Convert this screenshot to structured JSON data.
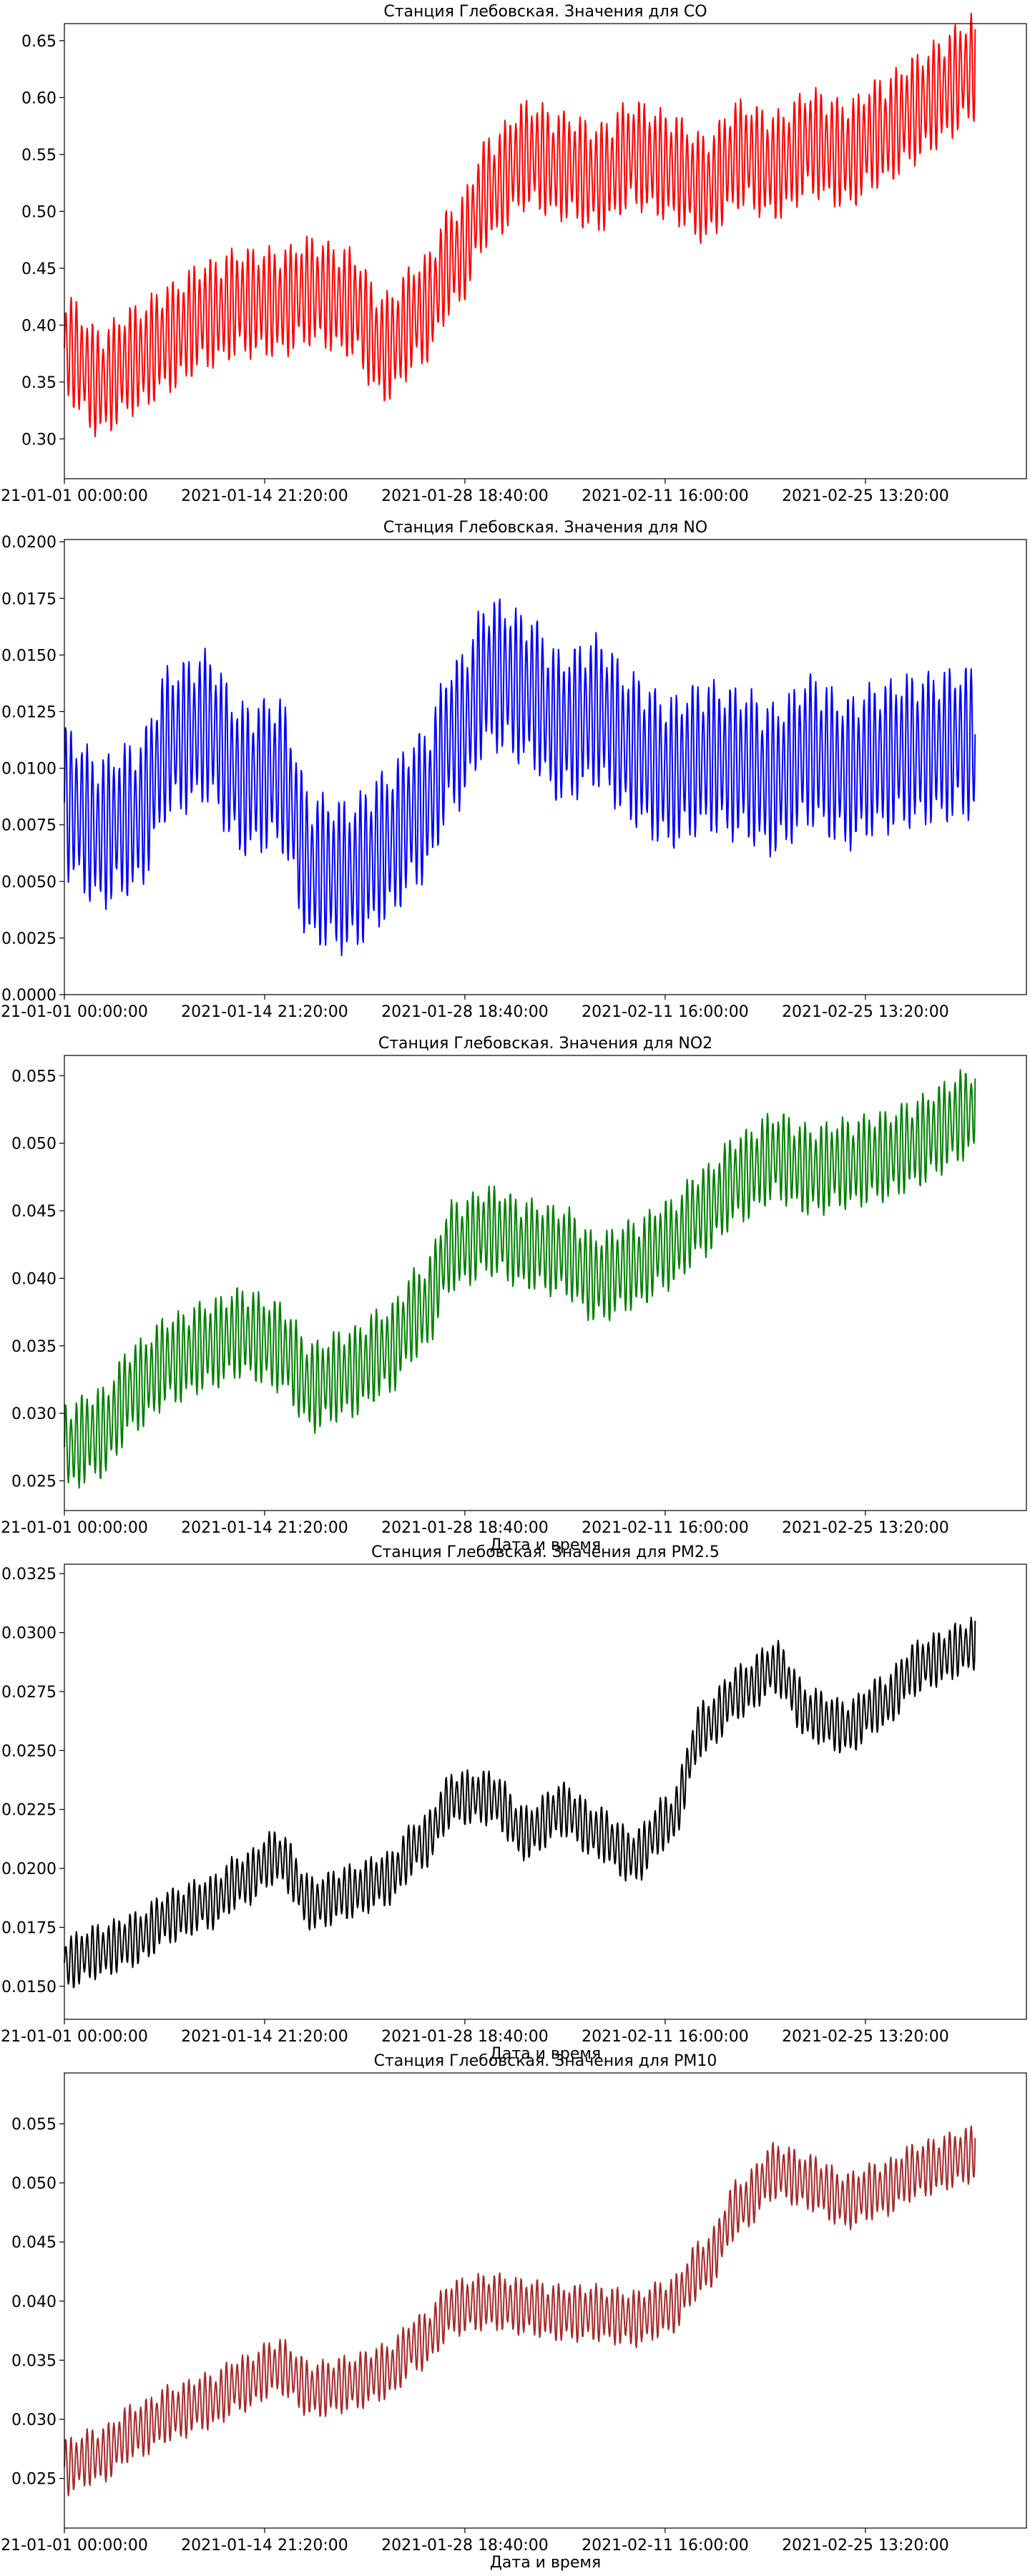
{
  "chart_data": [
    {
      "type": "line",
      "title": "Станция Глебовская. Значения для CO",
      "xlabel": "",
      "ylabel": "",
      "color": "#ff0000",
      "x_ticks": [
        "2021-01-01 00:00:00",
        "2021-01-14 21:20:00",
        "2021-01-28 18:40:00",
        "2021-02-11 16:00:00",
        "2021-02-25 13:20:00"
      ],
      "y_ticks": [
        "0.30",
        "0.35",
        "0.40",
        "0.45",
        "0.50",
        "0.55",
        "0.60",
        "0.65"
      ],
      "xlim": [
        "2021-01-01 00:00:00",
        "2021-03-08 17:20:00"
      ],
      "ylim": [
        0.265,
        0.665
      ],
      "series": [
        {
          "x": [
            "2021-01-01 00:00:00",
            "2021-01-03 11:10:00",
            "2021-01-05 22:20:00",
            "2021-01-08 09:30:00",
            "2021-01-10 20:40:00",
            "2021-01-13 07:50:00",
            "2021-01-15 19:00:00",
            "2021-01-18 06:10:00",
            "2021-01-20 17:20:00",
            "2021-01-23 04:30:00",
            "2021-01-25 15:40:00",
            "2021-01-28 02:50:00",
            "2021-01-30 14:00:00",
            "2021-02-02 01:10:00",
            "2021-02-04 12:20:00",
            "2021-02-06 23:30:00",
            "2021-02-09 10:40:00",
            "2021-02-11 21:50:00",
            "2021-02-14 09:00:00",
            "2021-02-16 20:10:00",
            "2021-02-19 07:20:00",
            "2021-02-21 18:30:00",
            "2021-02-24 05:40:00",
            "2021-02-26 16:50:00",
            "2021-03-01 04:00:00"
          ],
          "y": [
            0.38,
            0.35,
            0.37,
            0.39,
            0.41,
            0.42,
            0.42,
            0.43,
            0.42,
            0.38,
            0.41,
            0.46,
            0.52,
            0.55,
            0.54,
            0.53,
            0.55,
            0.54,
            0.52,
            0.55,
            0.54,
            0.56,
            0.55,
            0.57,
            0.59
          ],
          "amplitude": 0.05,
          "end_value": 0.66
        }
      ]
    },
    {
      "type": "line",
      "title": "Станция Глебовская. Значения для NO",
      "xlabel": "",
      "ylabel": "",
      "color": "#0000ff",
      "x_ticks": [
        "2021-01-01 00:00:00",
        "2021-01-14 21:20:00",
        "2021-01-28 18:40:00",
        "2021-02-11 16:00:00",
        "2021-02-25 13:20:00"
      ],
      "y_ticks": [
        "0.0000",
        "0.0025",
        "0.0050",
        "0.0075",
        "0.0100",
        "0.0125",
        "0.0150",
        "0.0175",
        "0.0200"
      ],
      "xlim": [
        "2021-01-01 00:00:00",
        "2021-03-08 17:20:00"
      ],
      "ylim": [
        0.0,
        0.0201
      ],
      "series": [
        {
          "x": [
            "2021-01-01 00:00:00",
            "2021-01-03 11:10:00",
            "2021-01-05 22:20:00",
            "2021-01-08 09:30:00",
            "2021-01-10 20:40:00",
            "2021-01-13 07:50:00",
            "2021-01-15 19:00:00",
            "2021-01-18 06:10:00",
            "2021-01-20 17:20:00",
            "2021-01-23 04:30:00",
            "2021-01-25 15:40:00",
            "2021-01-28 02:50:00",
            "2021-01-30 14:00:00",
            "2021-02-02 01:10:00",
            "2021-02-04 12:20:00",
            "2021-02-06 23:30:00",
            "2021-02-09 10:40:00",
            "2021-02-11 21:50:00",
            "2021-02-14 09:00:00",
            "2021-02-16 20:10:00",
            "2021-02-19 07:20:00",
            "2021-02-21 18:30:00",
            "2021-02-24 05:40:00",
            "2021-02-26 16:50:00",
            "2021-03-01 04:00:00"
          ],
          "y": [
            0.0085,
            0.0072,
            0.0078,
            0.0112,
            0.0118,
            0.0095,
            0.0098,
            0.0055,
            0.0052,
            0.0065,
            0.0082,
            0.0115,
            0.0142,
            0.0135,
            0.0118,
            0.0125,
            0.0108,
            0.0098,
            0.0105,
            0.0102,
            0.0095,
            0.0108,
            0.0098,
            0.0105,
            0.0108
          ],
          "amplitude": 0.0035,
          "end_value": 0.0115
        }
      ]
    },
    {
      "type": "line",
      "title": "Станция Глебовская. Значения для NO2",
      "xlabel": "Дата и время",
      "ylabel": "",
      "color": "#008000",
      "x_ticks": [
        "2021-01-01 00:00:00",
        "2021-01-14 21:20:00",
        "2021-01-28 18:40:00",
        "2021-02-11 16:00:00",
        "2021-02-25 13:20:00"
      ],
      "y_ticks": [
        "0.025",
        "0.030",
        "0.035",
        "0.040",
        "0.045",
        "0.050",
        "0.055"
      ],
      "xlim": [
        "2021-01-01 00:00:00",
        "2021-03-08 17:20:00"
      ],
      "ylim": [
        0.0228,
        0.0565
      ],
      "series": [
        {
          "x": [
            "2021-01-01 00:00:00",
            "2021-01-03 11:10:00",
            "2021-01-05 22:20:00",
            "2021-01-08 09:30:00",
            "2021-01-10 20:40:00",
            "2021-01-13 07:50:00",
            "2021-01-15 19:00:00",
            "2021-01-18 06:10:00",
            "2021-01-20 17:20:00",
            "2021-01-23 04:30:00",
            "2021-01-25 15:40:00",
            "2021-01-28 02:50:00",
            "2021-01-30 14:00:00",
            "2021-02-02 01:10:00",
            "2021-02-04 12:20:00",
            "2021-02-06 23:30:00",
            "2021-02-09 10:40:00",
            "2021-02-11 21:50:00",
            "2021-02-14 09:00:00",
            "2021-02-16 20:10:00",
            "2021-02-19 07:20:00",
            "2021-02-21 18:30:00",
            "2021-02-24 05:40:00",
            "2021-02-26 16:50:00",
            "2021-03-01 04:00:00"
          ],
          "y": [
            0.0275,
            0.0285,
            0.032,
            0.034,
            0.035,
            0.036,
            0.035,
            0.032,
            0.033,
            0.0345,
            0.0375,
            0.0425,
            0.0435,
            0.0425,
            0.042,
            0.04,
            0.041,
            0.0425,
            0.045,
            0.0475,
            0.049,
            0.048,
            0.0485,
            0.049,
            0.05
          ],
          "amplitude": 0.0035,
          "end_value": 0.0548
        }
      ]
    },
    {
      "type": "line",
      "title": "Станция Глебовская. Значения для PM2.5",
      "xlabel": "Дата и время",
      "ylabel": "",
      "color": "#000000",
      "x_ticks": [
        "2021-01-01 00:00:00",
        "2021-01-14 21:20:00",
        "2021-01-28 18:40:00",
        "2021-02-11 16:00:00",
        "2021-02-25 13:20:00"
      ],
      "y_ticks": [
        "0.0150",
        "0.0175",
        "0.0200",
        "0.0225",
        "0.0250",
        "0.0275",
        "0.0300",
        "0.0325"
      ],
      "xlim": [
        "2021-01-01 00:00:00",
        "2021-03-08 17:20:00"
      ],
      "ylim": [
        0.0136,
        0.0329
      ],
      "series": [
        {
          "x": [
            "2021-01-01 00:00:00",
            "2021-01-03 11:10:00",
            "2021-01-05 22:20:00",
            "2021-01-08 09:30:00",
            "2021-01-10 20:40:00",
            "2021-01-13 07:50:00",
            "2021-01-15 19:00:00",
            "2021-01-18 06:10:00",
            "2021-01-20 17:20:00",
            "2021-01-23 04:30:00",
            "2021-01-25 15:40:00",
            "2021-01-28 02:50:00",
            "2021-01-30 14:00:00",
            "2021-02-02 01:10:00",
            "2021-02-04 12:20:00",
            "2021-02-06 23:30:00",
            "2021-02-09 10:40:00",
            "2021-02-11 21:50:00",
            "2021-02-14 09:00:00",
            "2021-02-16 20:10:00",
            "2021-02-19 07:20:00",
            "2021-02-21 18:30:00",
            "2021-02-24 05:40:00",
            "2021-02-26 16:50:00",
            "2021-03-01 04:00:00"
          ],
          "y": [
            0.016,
            0.0165,
            0.017,
            0.018,
            0.0185,
            0.0195,
            0.0205,
            0.0185,
            0.019,
            0.0195,
            0.021,
            0.023,
            0.023,
            0.0215,
            0.0225,
            0.0215,
            0.0205,
            0.022,
            0.026,
            0.0275,
            0.0285,
            0.0265,
            0.026,
            0.027,
            0.0285
          ],
          "amplitude": 0.0012,
          "end_value": 0.0305
        }
      ]
    },
    {
      "type": "line",
      "title": "Станция Глебовская. Значения для PM10",
      "xlabel": "Дата и время",
      "ylabel": "",
      "color": "#a52a2a",
      "x_ticks": [
        "2021-01-01 00:00:00",
        "2021-01-14 21:20:00",
        "2021-01-28 18:40:00",
        "2021-02-11 16:00:00",
        "2021-02-25 13:20:00"
      ],
      "y_ticks": [
        "0.025",
        "0.030",
        "0.035",
        "0.040",
        "0.045",
        "0.050",
        "0.055"
      ],
      "xlim": [
        "2021-01-01 00:00:00",
        "2021-03-08 17:20:00"
      ],
      "ylim": [
        0.0208,
        0.0593
      ],
      "series": [
        {
          "x": [
            "2021-01-01 00:00:00",
            "2021-01-03 11:10:00",
            "2021-01-05 22:20:00",
            "2021-01-08 09:30:00",
            "2021-01-10 20:40:00",
            "2021-01-13 07:50:00",
            "2021-01-15 19:00:00",
            "2021-01-18 06:10:00",
            "2021-01-20 17:20:00",
            "2021-01-23 04:30:00",
            "2021-01-25 15:40:00",
            "2021-01-28 02:50:00",
            "2021-01-30 14:00:00",
            "2021-02-02 01:10:00",
            "2021-02-04 12:20:00",
            "2021-02-06 23:30:00",
            "2021-02-09 10:40:00",
            "2021-02-11 21:50:00",
            "2021-02-14 09:00:00",
            "2021-02-16 20:10:00",
            "2021-02-19 07:20:00",
            "2021-02-21 18:30:00",
            "2021-02-24 05:40:00",
            "2021-02-26 16:50:00",
            "2021-03-01 04:00:00"
          ],
          "y": [
            0.026,
            0.027,
            0.029,
            0.0305,
            0.0315,
            0.033,
            0.0345,
            0.0325,
            0.033,
            0.034,
            0.0365,
            0.0395,
            0.04,
            0.0395,
            0.039,
            0.039,
            0.0385,
            0.0395,
            0.043,
            0.048,
            0.051,
            0.05,
            0.0485,
            0.0495,
            0.051
          ],
          "amplitude": 0.0025,
          "end_value": 0.0538
        }
      ]
    }
  ]
}
